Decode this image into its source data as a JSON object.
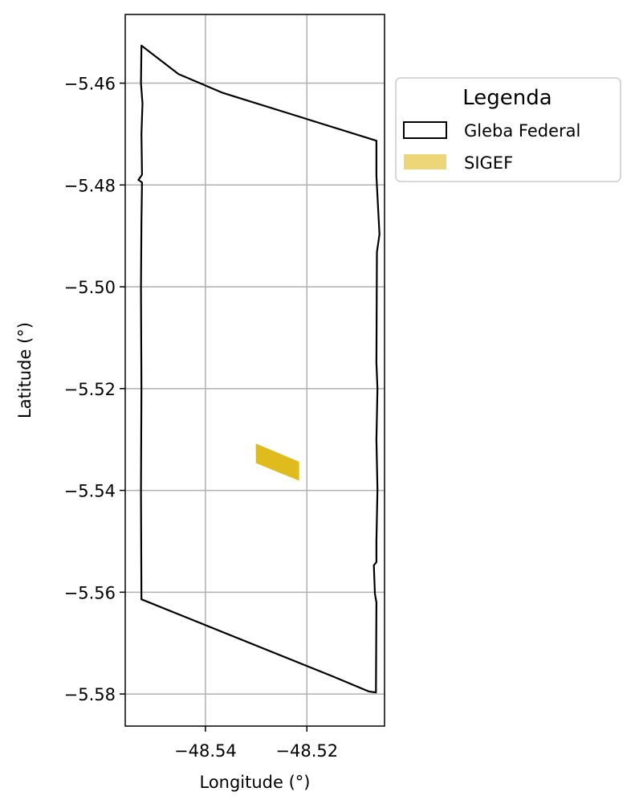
{
  "chart_data": {
    "type": "map",
    "xlabel": "Longitude (°)",
    "ylabel": "Latitude (°)",
    "xlim": [
      -48.5558,
      -48.5047
    ],
    "ylim": [
      -5.5863,
      -5.4465
    ],
    "xticks": [
      -48.54,
      -48.52
    ],
    "xtick_labels": [
      "−48.54",
      "−48.52"
    ],
    "yticks": [
      -5.46,
      -5.48,
      -5.5,
      -5.52,
      -5.54,
      -5.56,
      -5.58
    ],
    "ytick_labels": [
      "−5.46",
      "−5.48",
      "−5.50",
      "−5.52",
      "−5.54",
      "−5.56",
      "−5.58"
    ],
    "grid": true,
    "legend": {
      "title": "Legenda",
      "placement": "outside upper right",
      "entries": [
        {
          "label": "Gleba Federal",
          "style": "outline"
        },
        {
          "label": "SIGEF",
          "style": "fill"
        }
      ]
    },
    "series": [
      {
        "name": "Gleba Federal",
        "kind": "polygon-outline",
        "color": "#000000",
        "points": [
          [
            -48.5526,
            -5.4526
          ],
          [
            -48.5453,
            -5.4582
          ],
          [
            -48.5366,
            -5.4619
          ],
          [
            -48.5063,
            -5.4713
          ],
          [
            -48.5063,
            -5.4782
          ],
          [
            -48.506,
            -5.484
          ],
          [
            -48.5057,
            -5.4897
          ],
          [
            -48.5062,
            -5.4932
          ],
          [
            -48.5063,
            -5.515
          ],
          [
            -48.5061,
            -5.52
          ],
          [
            -48.5063,
            -5.53
          ],
          [
            -48.5061,
            -5.5398
          ],
          [
            -48.5063,
            -5.55
          ],
          [
            -48.5063,
            -5.5541
          ],
          [
            -48.5068,
            -5.5547
          ],
          [
            -48.5066,
            -5.5603
          ],
          [
            -48.5063,
            -5.562
          ],
          [
            -48.5064,
            -5.5797
          ],
          [
            -48.5078,
            -5.5795
          ],
          [
            -48.515,
            -5.5765
          ],
          [
            -48.5526,
            -5.5614
          ],
          [
            -48.5527,
            -5.54
          ],
          [
            -48.5526,
            -5.52
          ],
          [
            -48.5527,
            -5.5
          ],
          [
            -48.5526,
            -5.487
          ],
          [
            -48.5525,
            -5.4795
          ],
          [
            -48.5532,
            -5.479
          ],
          [
            -48.5525,
            -5.478
          ],
          [
            -48.5526,
            -5.47
          ],
          [
            -48.5524,
            -5.464
          ],
          [
            -48.5527,
            -5.46
          ],
          [
            -48.5526,
            -5.4526
          ]
        ]
      },
      {
        "name": "SIGEF",
        "kind": "polygon-fill",
        "color": "#e0bb1e",
        "points": [
          [
            -48.53,
            -5.5309
          ],
          [
            -48.5216,
            -5.5344
          ],
          [
            -48.5216,
            -5.538
          ],
          [
            -48.53,
            -5.5346
          ],
          [
            -48.53,
            -5.5309
          ]
        ]
      }
    ]
  }
}
